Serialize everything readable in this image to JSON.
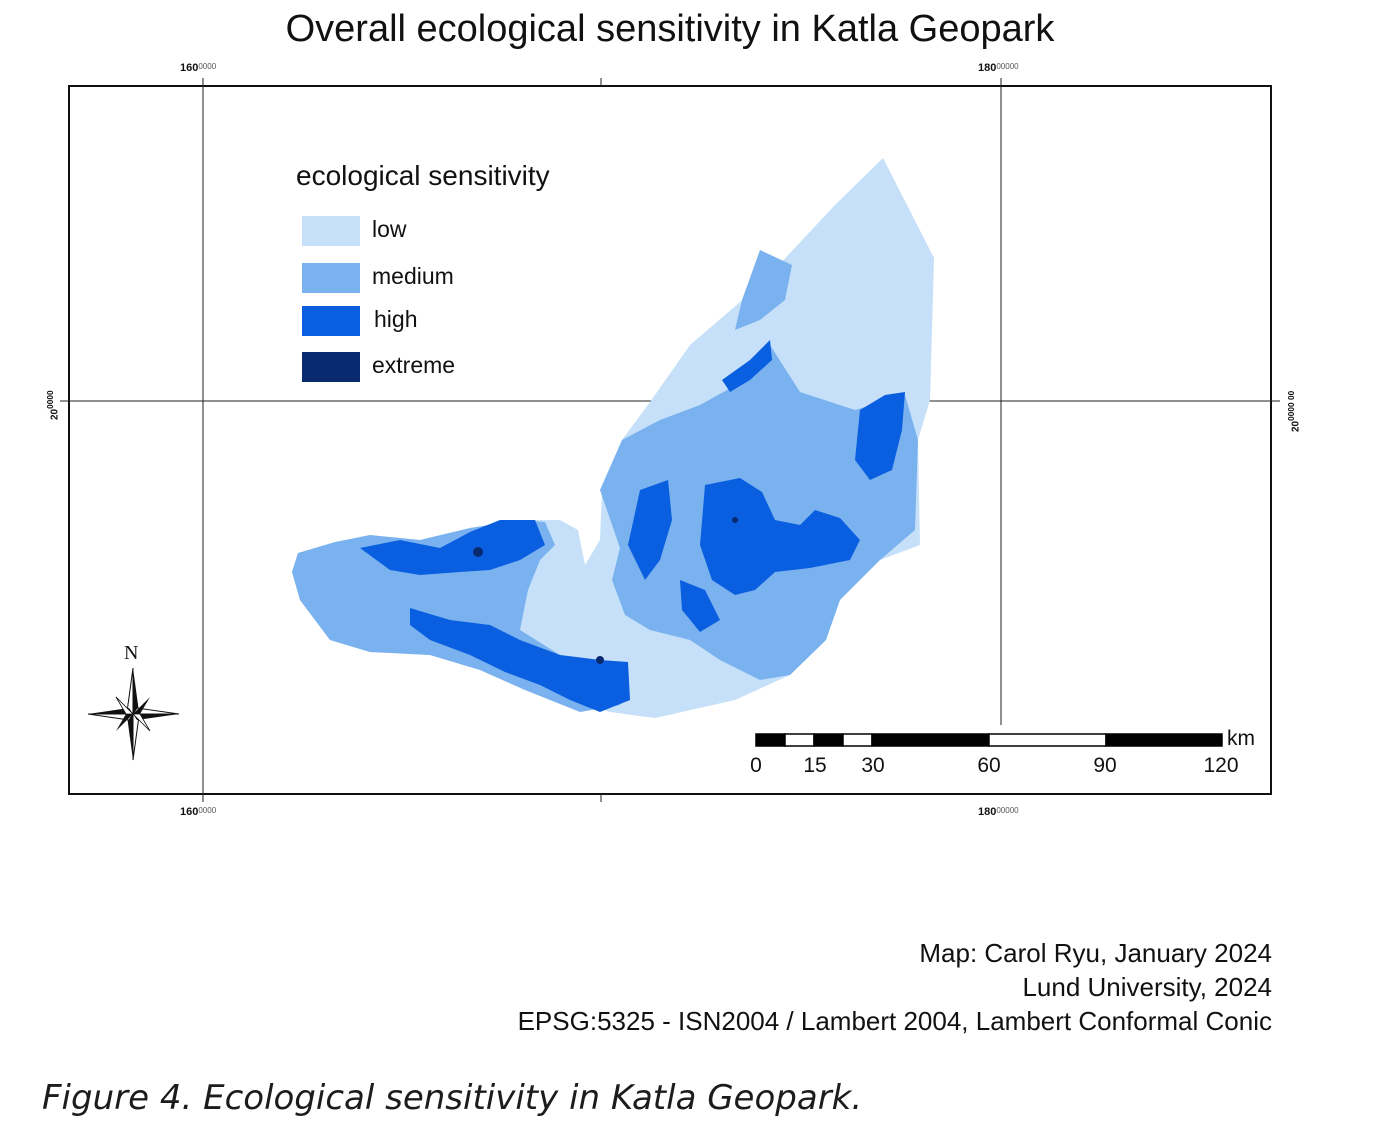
{
  "title": "Overall ecological sensitivity in Katla Geopark",
  "grid": {
    "top": [
      {
        "main": "160",
        "sup": "0000"
      },
      {
        "main": "180",
        "sup": "00000"
      }
    ],
    "bottom": [
      {
        "main": "160",
        "sup": "0000"
      },
      {
        "main": "180",
        "sup": "00000"
      }
    ],
    "left": {
      "main": "20",
      "sup": "0000"
    },
    "right": {
      "main": "20",
      "sup": "0000  00"
    }
  },
  "legend": {
    "title": "ecological sensitivity",
    "items": [
      {
        "label": "low",
        "color": "#c5e0f8"
      },
      {
        "label": "medium",
        "color": "#7ab2ef"
      },
      {
        "label": "high",
        "color": "#0a5fe0"
      },
      {
        "label": "extreme",
        "color": "#0a2a70"
      }
    ]
  },
  "north_label": "N",
  "scale_bar": {
    "unit": "km",
    "ticks": [
      "0",
      "15",
      "30",
      "60",
      "90",
      "120"
    ]
  },
  "credits": [
    "Map: Carol Ryu, January 2024",
    "Lund University, 2024",
    "EPSG:5325 - ISN2004 / Lambert 2004, Lambert Conformal Conic"
  ],
  "caption": "Figure 4. Ecological sensitivity in Katla Geopark."
}
